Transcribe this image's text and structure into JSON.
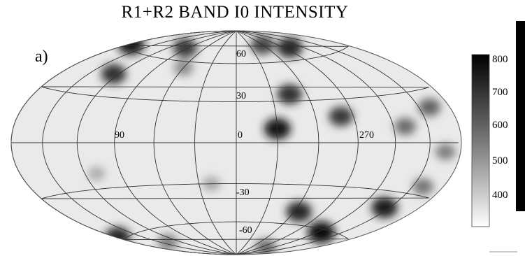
{
  "title": "R1+R2 BAND I0 INTENSITY",
  "panel_label": "a)",
  "map": {
    "projection": "Aitoff/Hammer equal-area",
    "longitude_labels": [
      "90",
      "0",
      "270"
    ],
    "latitude_labels": [
      "60",
      "30",
      "-30",
      "-60"
    ],
    "colormap": "grayscale, light = low, dark = high",
    "hotspots": [
      {
        "lon": 178,
        "lat": 62,
        "intensity": 780
      },
      {
        "lon": 260,
        "lat": 70,
        "intensity": 740
      },
      {
        "lon": 95,
        "lat": 70,
        "intensity": 700
      },
      {
        "lon": 125,
        "lat": 45,
        "intensity": 720
      },
      {
        "lon": 300,
        "lat": 75,
        "intensity": 680
      },
      {
        "lon": 200,
        "lat": 20,
        "intensity": 620
      },
      {
        "lon": 230,
        "lat": 10,
        "intensity": 600
      },
      {
        "lon": 280,
        "lat": 18,
        "intensity": 700
      },
      {
        "lon": 315,
        "lat": 35,
        "intensity": 720
      },
      {
        "lon": 330,
        "lat": 10,
        "intensity": 780
      },
      {
        "lon": 195,
        "lat": -5,
        "intensity": 560
      },
      {
        "lon": 200,
        "lat": -25,
        "intensity": 580
      },
      {
        "lon": 215,
        "lat": -40,
        "intensity": 760
      },
      {
        "lon": 235,
        "lat": -62,
        "intensity": 800
      },
      {
        "lon": 178,
        "lat": -58,
        "intensity": 740
      },
      {
        "lon": 295,
        "lat": -50,
        "intensity": 740
      },
      {
        "lon": 255,
        "lat": -80,
        "intensity": 600
      },
      {
        "lon": 140,
        "lat": -70,
        "intensity": 560
      },
      {
        "lon": 60,
        "lat": 55,
        "intensity": 540
      },
      {
        "lon": 20,
        "lat": -30,
        "intensity": 480
      },
      {
        "lon": 110,
        "lat": -20,
        "intensity": 470
      }
    ]
  },
  "colorbar": {
    "tick_labels": [
      "800",
      "700",
      "600",
      "500",
      "400"
    ],
    "range": [
      350,
      820
    ]
  }
}
